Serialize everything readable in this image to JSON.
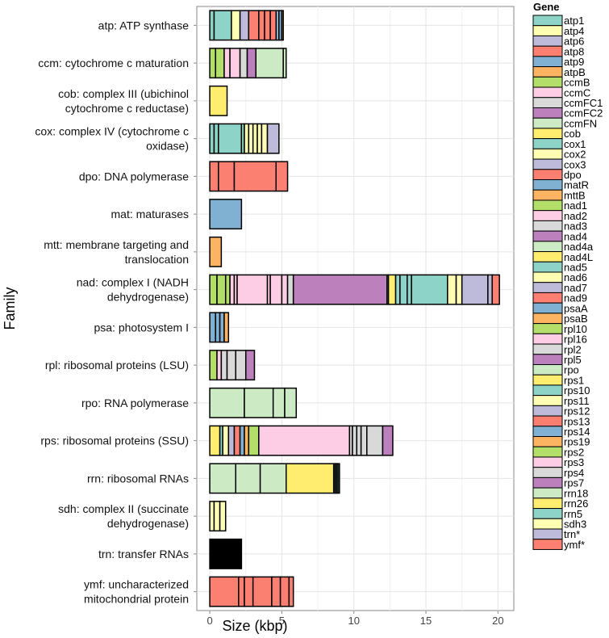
{
  "chart_data": {
    "type": "bar",
    "orientation": "horizontal",
    "stacked": true,
    "xlabel": "Size (kbp)",
    "ylabel": "Family",
    "xlim": [
      -0.9,
      21.1
    ],
    "xticks": [
      0,
      5,
      10,
      15,
      20
    ],
    "grid": true,
    "legend": {
      "title": "Gene",
      "position": "right"
    },
    "genes": [
      {
        "name": "atp1",
        "color": "#8dd3c7"
      },
      {
        "name": "atp4",
        "color": "#ffffb3"
      },
      {
        "name": "atp6",
        "color": "#bebada"
      },
      {
        "name": "atp8",
        "color": "#fb8072"
      },
      {
        "name": "atp9",
        "color": "#80b1d3"
      },
      {
        "name": "atpB",
        "color": "#fdb462"
      },
      {
        "name": "ccmB",
        "color": "#b3de69"
      },
      {
        "name": "ccmC",
        "color": "#fccde5"
      },
      {
        "name": "ccmFC1",
        "color": "#d9d9d9"
      },
      {
        "name": "ccmFC2",
        "color": "#bc80bd"
      },
      {
        "name": "ccmFN",
        "color": "#ccebc5"
      },
      {
        "name": "cob",
        "color": "#ffed6f"
      },
      {
        "name": "cox1",
        "color": "#8dd3c7"
      },
      {
        "name": "cox2",
        "color": "#ffffb3"
      },
      {
        "name": "cox3",
        "color": "#bebada"
      },
      {
        "name": "dpo",
        "color": "#fb8072"
      },
      {
        "name": "matR",
        "color": "#80b1d3"
      },
      {
        "name": "mttB",
        "color": "#fdb462"
      },
      {
        "name": "nad1",
        "color": "#b3de69"
      },
      {
        "name": "nad2",
        "color": "#fccde5"
      },
      {
        "name": "nad3",
        "color": "#d9d9d9"
      },
      {
        "name": "nad4",
        "color": "#bc80bd"
      },
      {
        "name": "nad4a",
        "color": "#ccebc5"
      },
      {
        "name": "nad4L",
        "color": "#ffed6f"
      },
      {
        "name": "nad5",
        "color": "#8dd3c7"
      },
      {
        "name": "nad6",
        "color": "#ffffb3"
      },
      {
        "name": "nad7",
        "color": "#bebada"
      },
      {
        "name": "nad9",
        "color": "#fb8072"
      },
      {
        "name": "psaA",
        "color": "#80b1d3"
      },
      {
        "name": "psaB",
        "color": "#fdb462"
      },
      {
        "name": "rpl10",
        "color": "#b3de69"
      },
      {
        "name": "rpl16",
        "color": "#fccde5"
      },
      {
        "name": "rpl2",
        "color": "#d9d9d9"
      },
      {
        "name": "rpl5",
        "color": "#bc80bd"
      },
      {
        "name": "rpo",
        "color": "#ccebc5"
      },
      {
        "name": "rps1",
        "color": "#ffed6f"
      },
      {
        "name": "rps10",
        "color": "#8dd3c7"
      },
      {
        "name": "rps11",
        "color": "#ffffb3"
      },
      {
        "name": "rps12",
        "color": "#bebada"
      },
      {
        "name": "rps13",
        "color": "#fb8072"
      },
      {
        "name": "rps14",
        "color": "#80b1d3"
      },
      {
        "name": "rps19",
        "color": "#fdb462"
      },
      {
        "name": "rps2",
        "color": "#b3de69"
      },
      {
        "name": "rps3",
        "color": "#fccde5"
      },
      {
        "name": "rps4",
        "color": "#d9d9d9"
      },
      {
        "name": "rps7",
        "color": "#bc80bd"
      },
      {
        "name": "rrn18",
        "color": "#ccebc5"
      },
      {
        "name": "rrn26",
        "color": "#ffed6f"
      },
      {
        "name": "rrn5",
        "color": "#8dd3c7"
      },
      {
        "name": "sdh3",
        "color": "#ffffb3"
      },
      {
        "name": "trn*",
        "color": "#bebada"
      },
      {
        "name": "ymf*",
        "color": "#fb8072"
      }
    ],
    "families": [
      {
        "label": [
          "atp: ATP synthase"
        ],
        "segments": [
          {
            "gene": "atp1",
            "values": [
              0.3,
              1.2
            ]
          },
          {
            "gene": "atp4",
            "values": [
              0.6
            ]
          },
          {
            "gene": "atp6",
            "values": [
              0.6
            ]
          },
          {
            "gene": "atp8",
            "values": [
              0.7,
              0.4,
              0.4,
              0.4
            ]
          },
          {
            "gene": "atp9",
            "values": [
              0.2,
              0.2
            ]
          },
          {
            "gene": "atpB",
            "values": [
              0.1
            ]
          }
        ]
      },
      {
        "label": [
          "ccm: cytochrome c maturation"
        ],
        "segments": [
          {
            "gene": "ccmB",
            "values": [
              0.4,
              0.6
            ]
          },
          {
            "gene": "ccmC",
            "values": [
              0.4,
              0.7
            ]
          },
          {
            "gene": "ccmFC1",
            "values": [
              0.5
            ]
          },
          {
            "gene": "ccmFC2",
            "values": [
              0.6
            ]
          },
          {
            "gene": "ccmFN",
            "values": [
              1.9,
              0.2
            ]
          }
        ]
      },
      {
        "label": [
          "cob: complex III (ubichinol",
          "cytochrome c reductase)"
        ],
        "segments": [
          {
            "gene": "cob",
            "values": [
              1.2
            ]
          }
        ]
      },
      {
        "label": [
          "cox: complex IV (cytochrome c",
          "oxidase)"
        ],
        "segments": [
          {
            "gene": "cox1",
            "values": [
              0.3,
              0.3,
              1.6,
              0.2
            ]
          },
          {
            "gene": "cox2",
            "values": [
              0.3,
              0.3,
              0.3,
              0.3,
              0.4
            ]
          },
          {
            "gene": "cox3",
            "values": [
              0.8
            ]
          }
        ]
      },
      {
        "label": [
          "dpo: DNA polymerase"
        ],
        "segments": [
          {
            "gene": "dpo",
            "values": [
              0.6,
              1.1,
              2.9,
              0.8
            ]
          }
        ]
      },
      {
        "label": [
          "mat: maturases"
        ],
        "segments": [
          {
            "gene": "matR",
            "values": [
              2.2
            ]
          }
        ]
      },
      {
        "label": [
          "mtt: membrane targeting and",
          "translocation"
        ],
        "segments": [
          {
            "gene": "mttB",
            "values": [
              0.8
            ]
          }
        ]
      },
      {
        "label": [
          "nad: complex I (NADH",
          "dehydrogenase)"
        ],
        "segments": [
          {
            "gene": "nad1",
            "values": [
              0.5,
              0.6,
              0.3
            ]
          },
          {
            "gene": "nad2",
            "values": [
              0.3,
              0.2,
              2.1,
              0.2,
              0.8,
              0.4
            ]
          },
          {
            "gene": "nad3",
            "values": [
              0.4
            ]
          },
          {
            "gene": "nad4",
            "values": [
              6.5
            ]
          },
          {
            "gene": "nad4a",
            "values": [
              0.1
            ]
          },
          {
            "gene": "nad4L",
            "values": [
              0.5
            ]
          },
          {
            "gene": "nad5",
            "values": [
              0.3,
              0.5,
              0.3,
              2.5
            ]
          },
          {
            "gene": "nad6",
            "values": [
              0.6,
              0.4
            ]
          },
          {
            "gene": "nad7",
            "values": [
              1.8,
              0.3
            ]
          },
          {
            "gene": "nad9",
            "values": [
              0.5
            ]
          }
        ]
      },
      {
        "label": [
          "psa: photosystem I"
        ],
        "segments": [
          {
            "gene": "psaA",
            "values": [
              0.4,
              0.3,
              0.3
            ]
          },
          {
            "gene": "psaB",
            "values": [
              0.3
            ]
          }
        ]
      },
      {
        "label": [
          "rpl: ribosomal proteins (LSU)"
        ],
        "segments": [
          {
            "gene": "rpl10",
            "values": [
              0.5
            ]
          },
          {
            "gene": "rpl16",
            "values": [
              0.3
            ]
          },
          {
            "gene": "rpl2",
            "values": [
              0.4,
              0.6,
              0.7
            ]
          },
          {
            "gene": "rpl5",
            "values": [
              0.6
            ]
          }
        ]
      },
      {
        "label": [
          "rpo: RNA polymerase"
        ],
        "segments": [
          {
            "gene": "rpo",
            "values": [
              2.4,
              2.0,
              0.8,
              0.8
            ]
          }
        ]
      },
      {
        "label": [
          "rps: ribosomal proteins (SSU)"
        ],
        "segments": [
          {
            "gene": "rps1",
            "values": [
              0.7
            ]
          },
          {
            "gene": "rps10",
            "values": [
              0.2
            ]
          },
          {
            "gene": "rps11",
            "values": [
              0.4
            ]
          },
          {
            "gene": "rps12",
            "values": [
              0.4
            ]
          },
          {
            "gene": "rps13",
            "values": [
              0.4
            ]
          },
          {
            "gene": "rps14",
            "values": [
              0.3
            ]
          },
          {
            "gene": "rps19",
            "values": [
              0.3
            ]
          },
          {
            "gene": "rps2",
            "values": [
              0.7
            ]
          },
          {
            "gene": "rps3",
            "values": [
              6.3
            ]
          },
          {
            "gene": "rps4",
            "values": [
              0.2,
              0.3,
              0.3,
              0.4,
              1.1
            ]
          },
          {
            "gene": "rps7",
            "values": [
              0.7
            ]
          }
        ]
      },
      {
        "label": [
          "rrn: ribosomal RNAs"
        ],
        "segments": [
          {
            "gene": "rrn18",
            "values": [
              1.8,
              1.7,
              1.8
            ]
          },
          {
            "gene": "rrn26",
            "values": [
              3.3
            ]
          },
          {
            "gene": "rrn5",
            "values": [
              0.1,
              0.1,
              0.1,
              0.1
            ]
          }
        ]
      },
      {
        "label": [
          "sdh: complex II (succinate",
          "dehydrogenase)"
        ],
        "segments": [
          {
            "gene": "sdh3",
            "values": [
              0.3,
              0.4,
              0.4
            ]
          }
        ]
      },
      {
        "label": [
          "trn: transfer RNAs"
        ],
        "segments": [
          {
            "gene": "trn*",
            "values": [
              2.2
            ],
            "color": "#000000"
          }
        ]
      },
      {
        "label": [
          "ymf: uncharacterized",
          "mitochondrial protein"
        ],
        "segments": [
          {
            "gene": "ymf*",
            "values": [
              2.0,
              0.4,
              0.6,
              1.3,
              0.6,
              0.6,
              0.3
            ]
          }
        ]
      }
    ]
  }
}
